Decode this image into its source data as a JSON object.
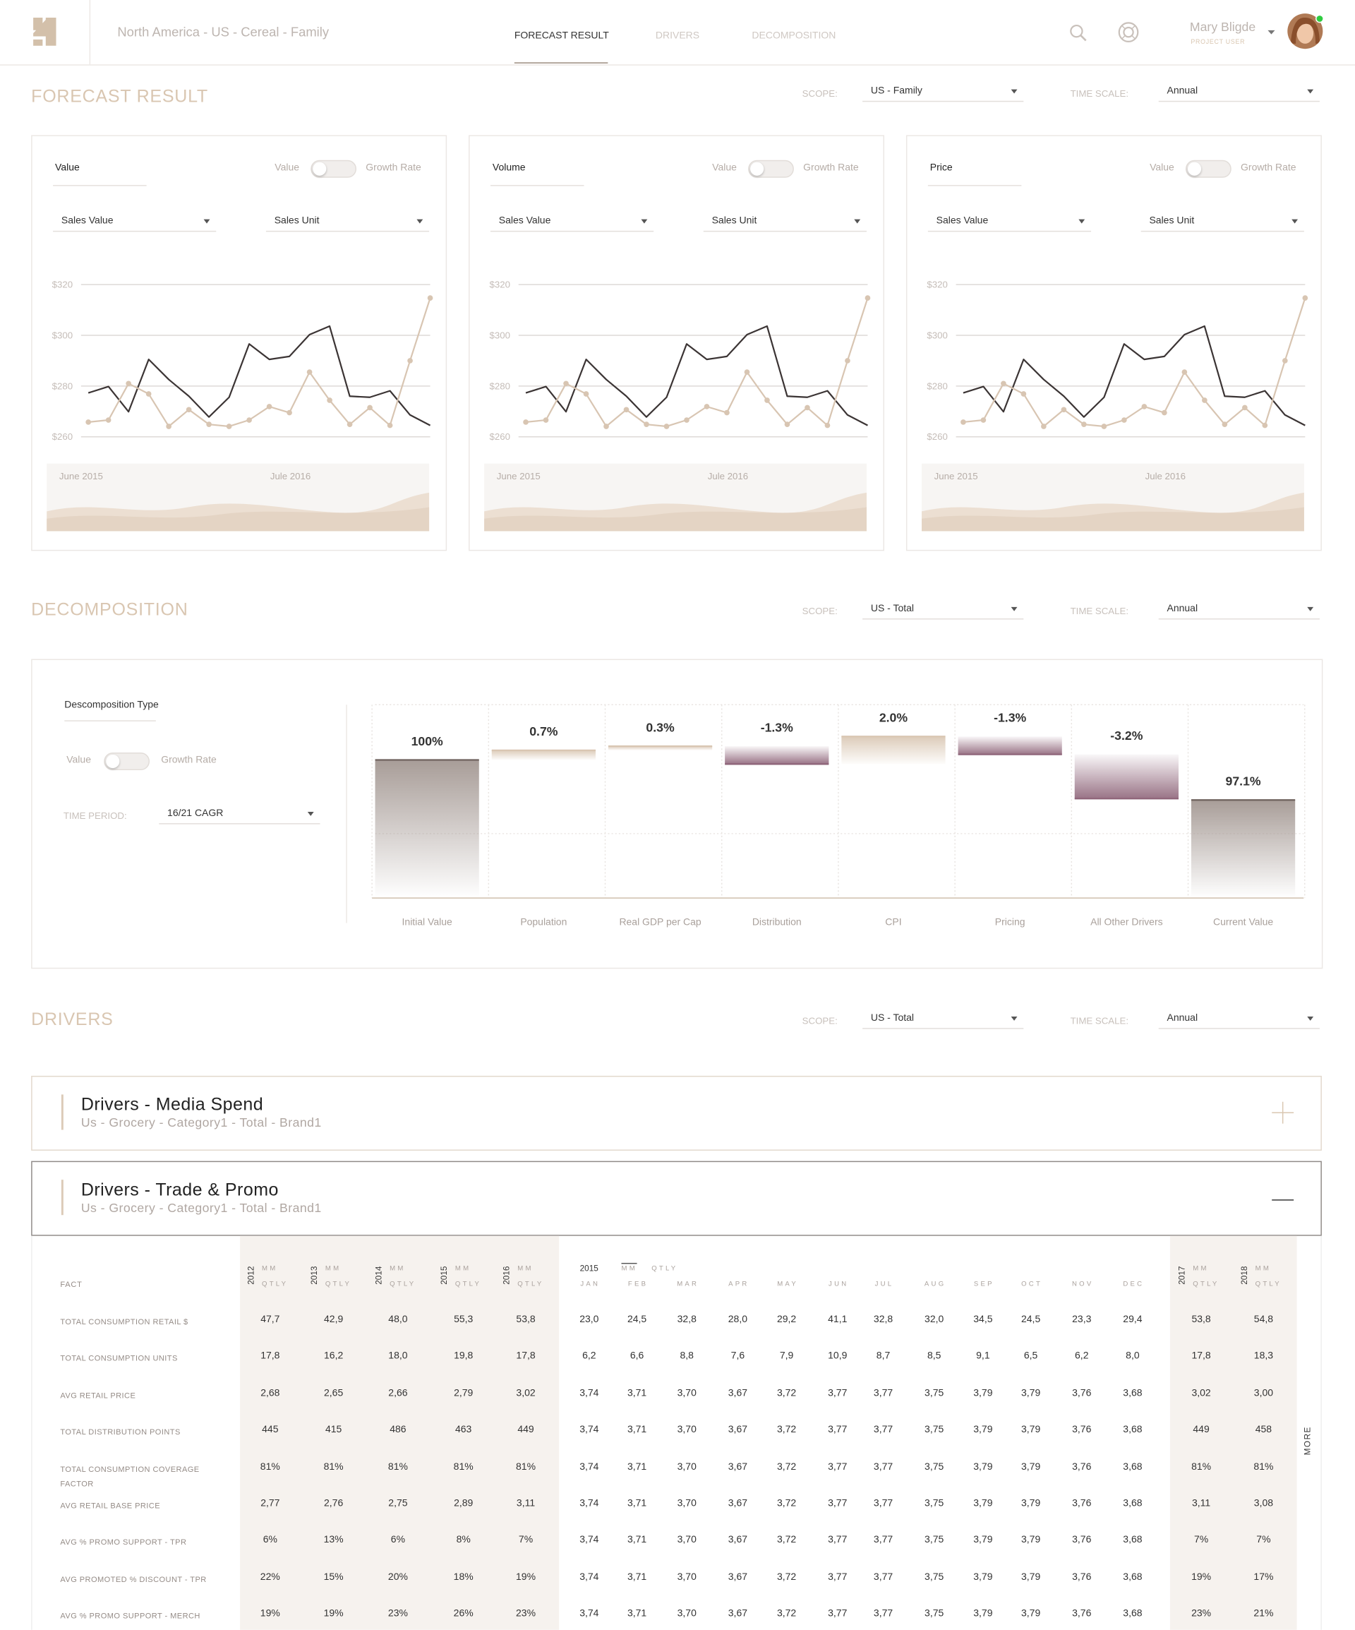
{
  "header": {
    "breadcrumb": "North America - US - Cereal - Family",
    "tabs": [
      "FORECAST RESULT",
      "DRIVERS",
      "DECOMPOSITION"
    ],
    "user_name": "Mary Bligde",
    "user_role": "PROJECT USER"
  },
  "forecast": {
    "title": "FORECAST RESULT",
    "scope_label": "SCOPE:",
    "scope": "US - Family",
    "time_scale_label": "TIME SCALE:",
    "time_scale": "Annual",
    "cards": [
      {
        "title": "Value",
        "toggle_left": "Value",
        "toggle_right": "Growth Rate",
        "select_left": "Sales Value",
        "select_right": "Sales Unit",
        "brush_labels": [
          "June 2015",
          "Jule 2016"
        ],
        "chart": {
          "type": "line",
          "ylim": [
            256,
            324
          ],
          "grid": true,
          "yticks": [
            {
              "value": 260,
              "label": "$260"
            },
            {
              "value": 280,
              "label": "$280"
            },
            {
              "value": 300,
              "label": "$300"
            },
            {
              "value": 320,
              "label": "$320"
            }
          ],
          "series": [
            {
              "color": "#3b3434",
              "markers": false,
              "values": [
                277.3,
                279.8,
                269.9,
                290.5,
                282.6,
                276.0,
                267.8,
                275.6,
                296.6,
                290.5,
                291.7,
                300.3,
                303.6,
                276.0,
                275.6,
                278.1,
                268.6,
                264.5
              ]
            },
            {
              "color": "#d8c5b2",
              "markers": true,
              "values": [
                265.8,
                266.6,
                281.0,
                276.9,
                264.1,
                270.7,
                264.9,
                264.1,
                266.6,
                271.9,
                269.5,
                285.5,
                274.4,
                264.9,
                271.5,
                264.5,
                290.0,
                314.7
              ]
            }
          ]
        }
      },
      {
        "title": "Volume",
        "toggle_left": "Value",
        "toggle_right": "Growth Rate",
        "select_left": "Sales Value",
        "select_right": "Sales Unit",
        "brush_labels": [
          "June 2015",
          "Jule 2016"
        ],
        "chart": {
          "type": "line",
          "ylim": [
            256,
            324
          ],
          "grid": true,
          "yticks": [
            {
              "value": 260,
              "label": "$260"
            },
            {
              "value": 280,
              "label": "$280"
            },
            {
              "value": 300,
              "label": "$300"
            },
            {
              "value": 320,
              "label": "$320"
            }
          ],
          "series": [
            {
              "color": "#3b3434",
              "markers": false,
              "values": [
                277.3,
                279.8,
                269.9,
                290.5,
                282.6,
                276.0,
                267.8,
                275.6,
                296.6,
                290.5,
                291.7,
                300.3,
                303.6,
                276.0,
                275.6,
                278.1,
                268.6,
                264.5
              ]
            },
            {
              "color": "#d8c5b2",
              "markers": true,
              "values": [
                265.8,
                266.6,
                281.0,
                276.9,
                264.1,
                270.7,
                264.9,
                264.1,
                266.6,
                271.9,
                269.5,
                285.5,
                274.4,
                264.9,
                271.5,
                264.5,
                290.0,
                314.7
              ]
            }
          ]
        }
      },
      {
        "title": "Price",
        "toggle_left": "Value",
        "toggle_right": "Growth Rate",
        "select_left": "Sales Value",
        "select_right": "Sales Unit",
        "brush_labels": [
          "June 2015",
          "Jule 2016"
        ],
        "chart": {
          "type": "line",
          "ylim": [
            256,
            324
          ],
          "grid": true,
          "yticks": [
            {
              "value": 260,
              "label": "$260"
            },
            {
              "value": 280,
              "label": "$280"
            },
            {
              "value": 300,
              "label": "$300"
            },
            {
              "value": 320,
              "label": "$320"
            }
          ],
          "series": [
            {
              "color": "#3b3434",
              "markers": false,
              "values": [
                277.3,
                279.8,
                269.9,
                290.5,
                282.6,
                276.0,
                267.8,
                275.6,
                296.6,
                290.5,
                291.7,
                300.3,
                303.6,
                276.0,
                275.6,
                278.1,
                268.6,
                264.5
              ]
            },
            {
              "color": "#d8c5b2",
              "markers": true,
              "values": [
                265.8,
                266.6,
                281.0,
                276.9,
                264.1,
                270.7,
                264.9,
                264.1,
                266.6,
                271.9,
                269.5,
                285.5,
                274.4,
                264.9,
                271.5,
                264.5,
                290.0,
                314.7
              ]
            }
          ]
        }
      }
    ]
  },
  "decomposition": {
    "title": "DECOMPOSITION",
    "scope_label": "SCOPE:",
    "scope": "US - Total",
    "time_scale_label": "TIME SCALE:",
    "time_scale": "Annual",
    "panel": {
      "type_label": "Descomposition Type",
      "toggle_left": "Value",
      "toggle_right": "Growth Rate",
      "period_label": "TIME PERIOD:",
      "period": "16/21 CAGR"
    },
    "chart": {
      "type": "waterfall",
      "categories": [
        "Initial Value",
        "Population",
        "Real GDP per Cap",
        "Distribution",
        "CPI",
        "Pricing",
        "All Other Drivers",
        "Current Value"
      ],
      "values": [
        100,
        0.7,
        0.3,
        -1.3,
        2.0,
        -1.3,
        -3.2,
        97.1
      ],
      "value_labels": [
        "100%",
        "0.7%",
        "0.3%",
        "-1.3%",
        "2.0%",
        "-1.3%",
        "-3.2%",
        "97.1%"
      ],
      "ylim": [
        90,
        104
      ],
      "colors": {
        "total": "#a89d98",
        "increase": "#d9c6b2",
        "decrease": "#8e6479"
      }
    }
  },
  "drivers": {
    "title": "DRIVERS",
    "scope_label": "SCOPE:",
    "scope": "US - Total",
    "time_scale_label": "TIME SCALE:",
    "time_scale": "Annual",
    "panels": [
      {
        "title": "Drivers - Media Spend",
        "subtitle": "Us - Grocery - Category1 - Total - Brand1",
        "expanded": false
      },
      {
        "title": "Drivers - Trade & Promo",
        "subtitle": "Us - Grocery - Category1 - Total - Brand1",
        "expanded": true
      }
    ],
    "table": {
      "fact_header": "FACT",
      "years_left": [
        "2012",
        "2013",
        "2014",
        "2015",
        "2016"
      ],
      "month_year": "2015",
      "months": [
        "JAN",
        "FEB",
        "MAR",
        "APR",
        "MAY",
        "JUN",
        "JUL",
        "AUG",
        "SEP",
        "OCT",
        "NOV",
        "DEC"
      ],
      "years_right": [
        "2017",
        "2018"
      ],
      "toggle": [
        "MM",
        "QTLY"
      ],
      "more": "MORE",
      "rows": [
        {
          "fact": "TOTAL CONSUMPTION RETAIL $",
          "values": [
            "47,7",
            "42,9",
            "48,0",
            "55,3",
            "53,8",
            "23,0",
            "24,5",
            "32,8",
            "28,0",
            "29,2",
            "41,1",
            "32,8",
            "32,0",
            "34,5",
            "24,5",
            "23,3",
            "29,4",
            "53,8",
            "54,8"
          ]
        },
        {
          "fact": "TOTAL CONSUMPTION UNITS",
          "values": [
            "17,8",
            "16,2",
            "18,0",
            "19,8",
            "17,8",
            "6,2",
            "6,6",
            "8,8",
            "7,6",
            "7,9",
            "10,9",
            "8,7",
            "8,5",
            "9,1",
            "6,5",
            "6,2",
            "8,0",
            "17,8",
            "18,3"
          ]
        },
        {
          "fact": "AVG RETAIL PRICE",
          "values": [
            "2,68",
            "2,65",
            "2,66",
            "2,79",
            "3,02",
            "3,74",
            "3,71",
            "3,70",
            "3,67",
            "3,72",
            "3,77",
            "3,77",
            "3,75",
            "3,79",
            "3,79",
            "3,76",
            "3,68",
            "3,02",
            "3,00"
          ]
        },
        {
          "fact": "TOTAL DISTRIBUTION POINTS",
          "values": [
            "445",
            "415",
            "486",
            "463",
            "449",
            "3,74",
            "3,71",
            "3,70",
            "3,67",
            "3,72",
            "3,77",
            "3,77",
            "3,75",
            "3,79",
            "3,79",
            "3,76",
            "3,68",
            "449",
            "458"
          ]
        },
        {
          "fact": "TOTAL CONSUMPTION COVERAGE FACTOR",
          "values": [
            "81%",
            "81%",
            "81%",
            "81%",
            "81%",
            "3,74",
            "3,71",
            "3,70",
            "3,67",
            "3,72",
            "3,77",
            "3,77",
            "3,75",
            "3,79",
            "3,79",
            "3,76",
            "3,68",
            "81%",
            "81%"
          ]
        },
        {
          "fact": "AVG RETAIL BASE PRICE",
          "values": [
            "2,77",
            "2,76",
            "2,75",
            "2,89",
            "3,11",
            "3,74",
            "3,71",
            "3,70",
            "3,67",
            "3,72",
            "3,77",
            "3,77",
            "3,75",
            "3,79",
            "3,79",
            "3,76",
            "3,68",
            "3,11",
            "3,08"
          ]
        },
        {
          "fact": "AVG % PROMO SUPPORT - TPR",
          "values": [
            "6%",
            "13%",
            "6%",
            "8%",
            "7%",
            "3,74",
            "3,71",
            "3,70",
            "3,67",
            "3,72",
            "3,77",
            "3,77",
            "3,75",
            "3,79",
            "3,79",
            "3,76",
            "3,68",
            "7%",
            "7%"
          ]
        },
        {
          "fact": "AVG PROMOTED % DISCOUNT - TPR",
          "values": [
            "22%",
            "15%",
            "20%",
            "18%",
            "19%",
            "3,74",
            "3,71",
            "3,70",
            "3,67",
            "3,72",
            "3,77",
            "3,77",
            "3,75",
            "3,79",
            "3,79",
            "3,76",
            "3,68",
            "19%",
            "17%"
          ]
        },
        {
          "fact": "AVG % PROMO SUPPORT - MERCH",
          "values": [
            "19%",
            "19%",
            "23%",
            "26%",
            "23%",
            "3,74",
            "3,71",
            "3,70",
            "3,67",
            "3,72",
            "3,77",
            "3,77",
            "3,75",
            "3,79",
            "3,79",
            "3,76",
            "3,68",
            "23%",
            "21%"
          ]
        }
      ]
    }
  }
}
